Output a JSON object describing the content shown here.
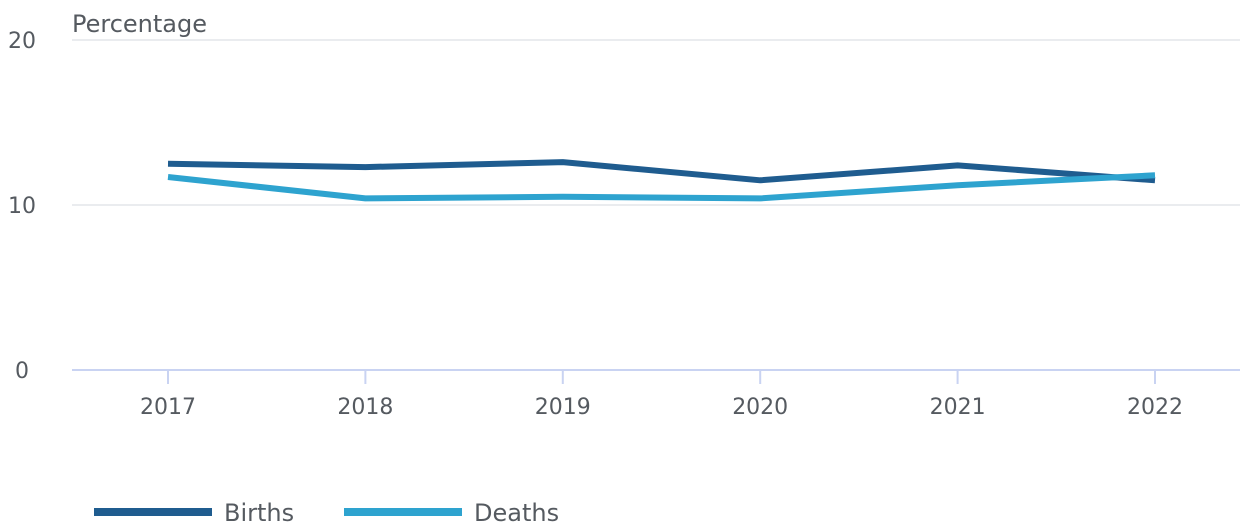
{
  "chart_data": {
    "type": "line",
    "ylabel": "Percentage",
    "ylim": [
      0,
      20
    ],
    "yticks": [
      0,
      10,
      20
    ],
    "categories": [
      "2017",
      "2018",
      "2019",
      "2020",
      "2021",
      "2022"
    ],
    "series": [
      {
        "name": "Births",
        "color": "#1f5c8f",
        "values": [
          12.5,
          12.3,
          12.6,
          11.5,
          12.4,
          11.5
        ]
      },
      {
        "name": "Deaths",
        "color": "#2ea3cf",
        "values": [
          11.7,
          10.4,
          10.5,
          10.4,
          11.2,
          11.8
        ]
      }
    ],
    "grid": true,
    "legend": "bottom-left"
  }
}
